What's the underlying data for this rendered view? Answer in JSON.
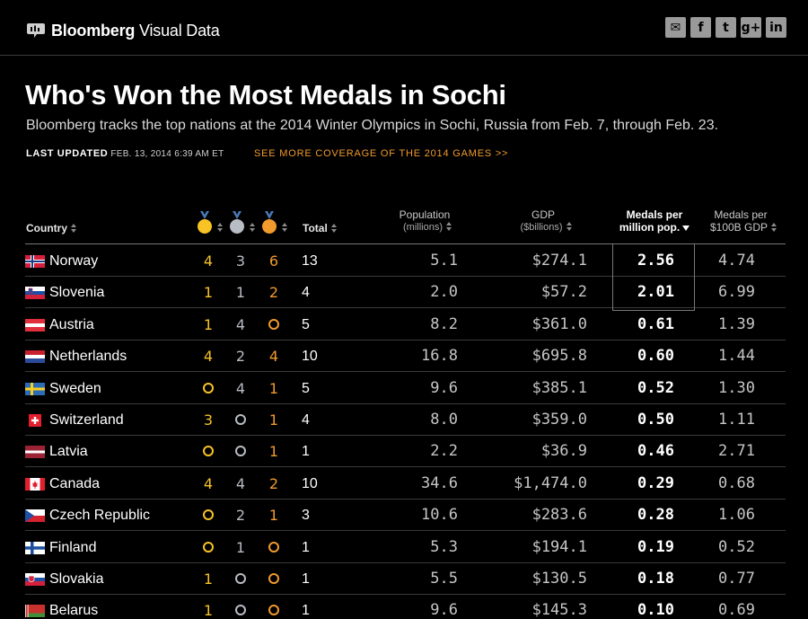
{
  "header": {
    "brand_bold": "Bloomberg",
    "brand_rest": " Visual Data",
    "brand_logo_icon": "speech-bubble-logo-icon",
    "share": [
      {
        "name": "email-share-icon",
        "glyph": "✉"
      },
      {
        "name": "facebook-share-icon",
        "glyph": "f"
      },
      {
        "name": "twitter-share-icon",
        "glyph": "t"
      },
      {
        "name": "googleplus-share-icon",
        "glyph": "g+"
      },
      {
        "name": "linkedin-share-icon",
        "glyph": "in"
      }
    ]
  },
  "article": {
    "title": "Who's Won the Most Medals in Sochi",
    "subtitle": "Bloomberg tracks the top nations at the 2014 Winter Olympics in Sochi, Russia from Feb. 7, through Feb. 23.",
    "last_updated_label": "LAST UPDATED",
    "last_updated_date": "FEB. 13, 2014 6:39 AM ET",
    "more_link": "SEE MORE COVERAGE OF THE 2014 GAMES >>"
  },
  "table": {
    "headers": {
      "country": "Country",
      "total": "Total",
      "population_1": "Population",
      "population_2": "(millions)",
      "gdp_1": "GDP",
      "gdp_2": "($billions)",
      "mpp_1": "Medals per",
      "mpp_2": "million pop.",
      "mpg_1": "Medals per",
      "mpg_2": "$100B GDP"
    },
    "colors": {
      "gold": "#f7c325",
      "silver": "#b8bcc4",
      "bronze": "#f29a2e"
    },
    "rows": [
      {
        "country": "Norway",
        "flag": "norway",
        "gold": 4,
        "silver": 3,
        "bronze": 6,
        "total": "13",
        "population": "5.1",
        "gdp": "$274.1",
        "mpp": "2.56",
        "mpg": "4.74"
      },
      {
        "country": "Slovenia",
        "flag": "slovenia",
        "gold": 1,
        "silver": 1,
        "bronze": 2,
        "total": "4",
        "population": "2.0",
        "gdp": "$57.2",
        "mpp": "2.01",
        "mpg": "6.99"
      },
      {
        "country": "Austria",
        "flag": "austria",
        "gold": 1,
        "silver": 4,
        "bronze": 0,
        "total": "5",
        "population": "8.2",
        "gdp": "$361.0",
        "mpp": "0.61",
        "mpg": "1.39"
      },
      {
        "country": "Netherlands",
        "flag": "netherlands",
        "gold": 4,
        "silver": 2,
        "bronze": 4,
        "total": "10",
        "population": "16.8",
        "gdp": "$695.8",
        "mpp": "0.60",
        "mpg": "1.44"
      },
      {
        "country": "Sweden",
        "flag": "sweden",
        "gold": 0,
        "silver": 4,
        "bronze": 1,
        "total": "5",
        "population": "9.6",
        "gdp": "$385.1",
        "mpp": "0.52",
        "mpg": "1.30"
      },
      {
        "country": "Switzerland",
        "flag": "switzerland",
        "gold": 3,
        "silver": 0,
        "bronze": 1,
        "total": "4",
        "population": "8.0",
        "gdp": "$359.0",
        "mpp": "0.50",
        "mpg": "1.11"
      },
      {
        "country": "Latvia",
        "flag": "latvia",
        "gold": 0,
        "silver": 0,
        "bronze": 1,
        "total": "1",
        "population": "2.2",
        "gdp": "$36.9",
        "mpp": "0.46",
        "mpg": "2.71"
      },
      {
        "country": "Canada",
        "flag": "canada",
        "gold": 4,
        "silver": 4,
        "bronze": 2,
        "total": "10",
        "population": "34.6",
        "gdp": "$1,474.0",
        "mpp": "0.29",
        "mpg": "0.68"
      },
      {
        "country": "Czech Republic",
        "flag": "czech",
        "gold": 0,
        "silver": 2,
        "bronze": 1,
        "total": "3",
        "population": "10.6",
        "gdp": "$283.6",
        "mpp": "0.28",
        "mpg": "1.06"
      },
      {
        "country": "Finland",
        "flag": "finland",
        "gold": 0,
        "silver": 1,
        "bronze": 0,
        "total": "1",
        "population": "5.3",
        "gdp": "$194.1",
        "mpp": "0.19",
        "mpg": "0.52"
      },
      {
        "country": "Slovakia",
        "flag": "slovakia",
        "gold": 1,
        "silver": 0,
        "bronze": 0,
        "total": "1",
        "population": "5.5",
        "gdp": "$130.5",
        "mpp": "0.18",
        "mpg": "0.77"
      },
      {
        "country": "Belarus",
        "flag": "belarus",
        "gold": 1,
        "silver": 0,
        "bronze": 0,
        "total": "1",
        "population": "9.6",
        "gdp": "$145.3",
        "mpp": "0.10",
        "mpg": "0.69"
      }
    ]
  }
}
